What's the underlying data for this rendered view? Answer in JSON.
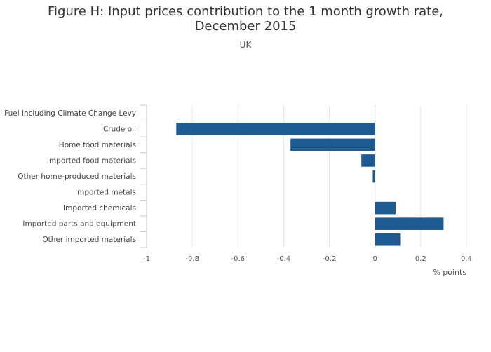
{
  "chart_data": {
    "type": "bar",
    "orientation": "horizontal",
    "title": "Figure H: Input prices contribution to the 1 month growth rate, December 2015",
    "subtitle": "UK",
    "xlabel": "% points",
    "xlim": [
      -1,
      0.4
    ],
    "xticks": [
      -1,
      -0.8,
      -0.6,
      -0.4,
      -0.2,
      0,
      0.2,
      0.4
    ],
    "categories": [
      "Fuel including Climate Change Levy",
      "Crude oil",
      "Home food materials",
      "Imported food materials",
      "Other home-produced materials",
      "Imported metals",
      "Imported chemicals",
      "Imported parts and equipment",
      "Other imported materials"
    ],
    "values": [
      0.0,
      -0.87,
      -0.37,
      -0.06,
      -0.01,
      0.0,
      0.09,
      0.3,
      0.11
    ],
    "bar_color": "#1f5b93",
    "grid": true
  }
}
